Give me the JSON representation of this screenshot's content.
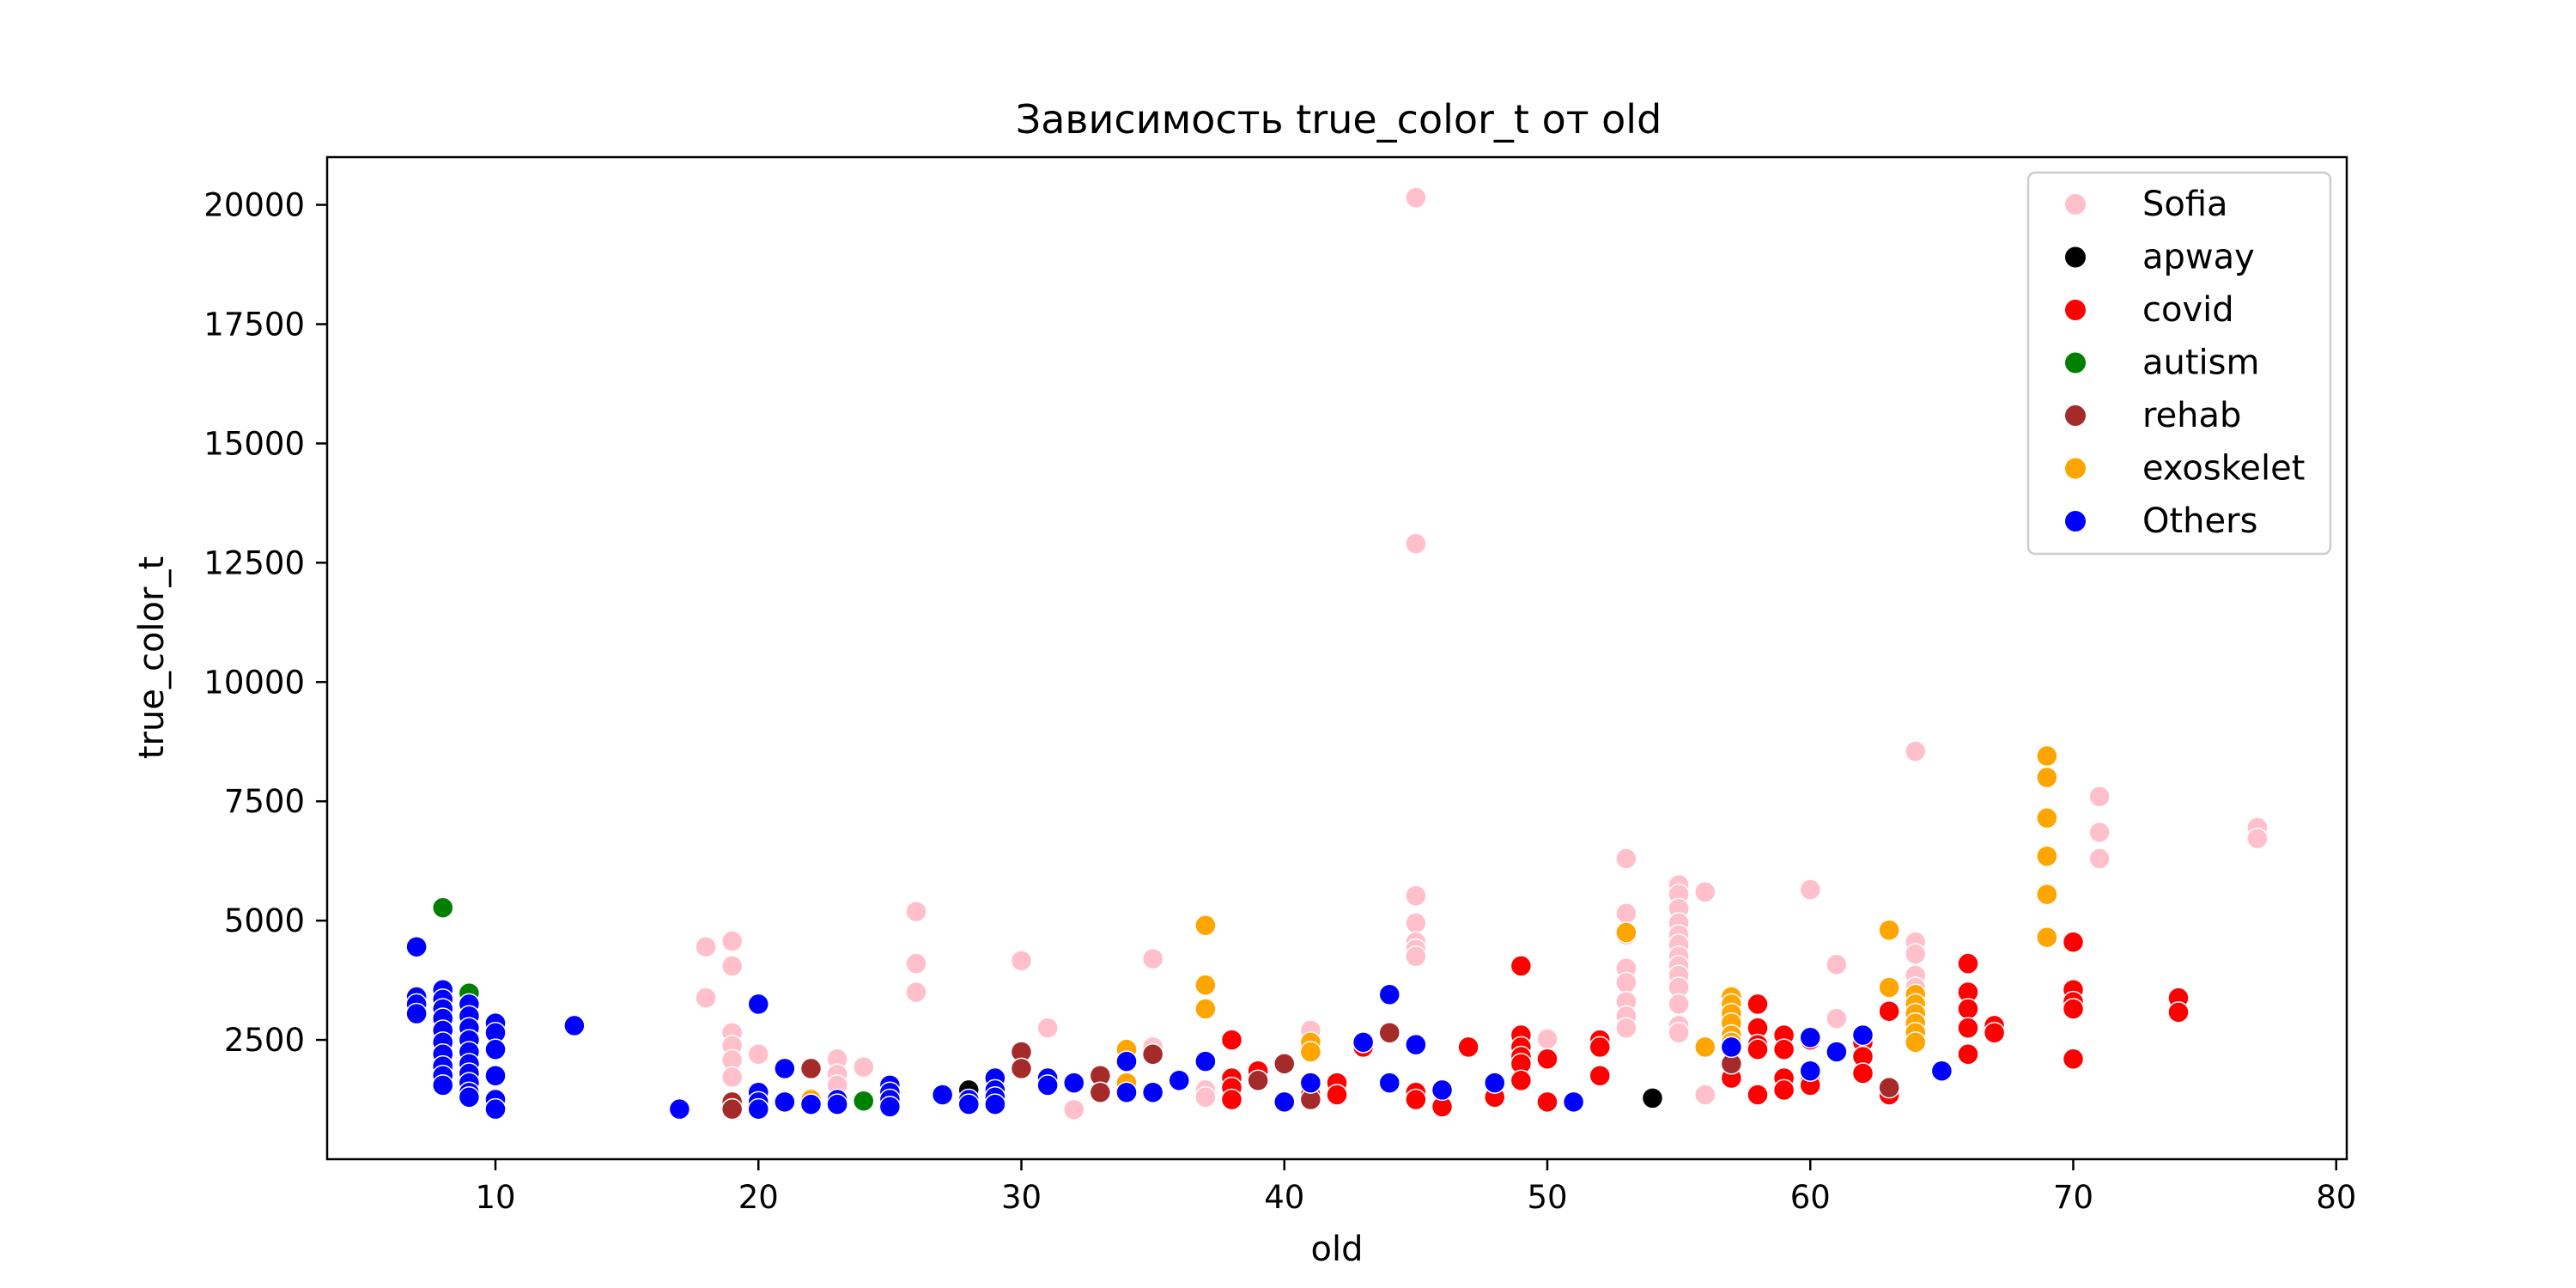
{
  "chart_data": {
    "type": "scatter",
    "title": "Зависимость true_color_t от old",
    "xlabel": "old",
    "ylabel": "true_color_t",
    "xlim": [
      3.6,
      80.4
    ],
    "ylim": [
      0,
      21000
    ],
    "xticks": [
      10,
      20,
      30,
      40,
      50,
      60,
      70,
      80
    ],
    "yticks": [
      2500,
      5000,
      7500,
      10000,
      12500,
      15000,
      17500,
      20000
    ],
    "grid": false,
    "legend_position": "top-right",
    "series": [
      {
        "name": "Sofia",
        "color": "#ffc0cb",
        "points": [
          [
            18,
            4450
          ],
          [
            18,
            3380
          ],
          [
            19,
            4570
          ],
          [
            19,
            4050
          ],
          [
            19,
            2650
          ],
          [
            19,
            2380
          ],
          [
            19,
            2080
          ],
          [
            19,
            1720
          ],
          [
            20,
            2200
          ],
          [
            23,
            2100
          ],
          [
            23,
            1780
          ],
          [
            23,
            1550
          ],
          [
            24,
            1930
          ],
          [
            26,
            5190
          ],
          [
            26,
            4100
          ],
          [
            26,
            3500
          ],
          [
            30,
            4160
          ],
          [
            31,
            2750
          ],
          [
            32,
            1040
          ],
          [
            35,
            4200
          ],
          [
            35,
            2350
          ],
          [
            37,
            1450
          ],
          [
            37,
            1300
          ],
          [
            41,
            2700
          ],
          [
            45,
            20150
          ],
          [
            45,
            12900
          ],
          [
            45,
            5520
          ],
          [
            45,
            4950
          ],
          [
            45,
            4550
          ],
          [
            45,
            4400
          ],
          [
            45,
            4250
          ],
          [
            50,
            2520
          ],
          [
            53,
            6300
          ],
          [
            53,
            5150
          ],
          [
            53,
            4700
          ],
          [
            53,
            4000
          ],
          [
            53,
            3700
          ],
          [
            53,
            3300
          ],
          [
            53,
            3000
          ],
          [
            53,
            2750
          ],
          [
            55,
            5750
          ],
          [
            55,
            5550
          ],
          [
            55,
            5250
          ],
          [
            55,
            4950
          ],
          [
            55,
            4700
          ],
          [
            55,
            4500
          ],
          [
            55,
            4250
          ],
          [
            55,
            4050
          ],
          [
            55,
            3850
          ],
          [
            55,
            3600
          ],
          [
            55,
            3250
          ],
          [
            55,
            2800
          ],
          [
            55,
            2650
          ],
          [
            56,
            5600
          ],
          [
            56,
            1350
          ],
          [
            60,
            5650
          ],
          [
            61,
            4080
          ],
          [
            61,
            2950
          ],
          [
            64,
            8550
          ],
          [
            64,
            4550
          ],
          [
            64,
            4300
          ],
          [
            64,
            3850
          ],
          [
            64,
            3600
          ],
          [
            64,
            3200
          ],
          [
            64,
            2950
          ],
          [
            71,
            7600
          ],
          [
            71,
            6850
          ],
          [
            71,
            6300
          ],
          [
            77,
            6950
          ],
          [
            77,
            6720
          ]
        ]
      },
      {
        "name": "apway",
        "color": "#000000",
        "points": [
          [
            28,
            1450
          ],
          [
            54,
            1280
          ]
        ]
      },
      {
        "name": "covid",
        "color": "#ff0000",
        "points": [
          [
            34,
            1450
          ],
          [
            38,
            2500
          ],
          [
            38,
            1700
          ],
          [
            38,
            1500
          ],
          [
            38,
            1250
          ],
          [
            39,
            1850
          ],
          [
            41,
            2300
          ],
          [
            41,
            1350
          ],
          [
            42,
            1600
          ],
          [
            42,
            1350
          ],
          [
            43,
            2350
          ],
          [
            45,
            1400
          ],
          [
            45,
            1250
          ],
          [
            46,
            1100
          ],
          [
            47,
            2350
          ],
          [
            48,
            1300
          ],
          [
            49,
            4050
          ],
          [
            49,
            2600
          ],
          [
            49,
            2350
          ],
          [
            49,
            2150
          ],
          [
            49,
            2000
          ],
          [
            49,
            1650
          ],
          [
            50,
            2100
          ],
          [
            50,
            1200
          ],
          [
            52,
            2500
          ],
          [
            52,
            2350
          ],
          [
            52,
            1750
          ],
          [
            57,
            2650
          ],
          [
            57,
            2400
          ],
          [
            57,
            1700
          ],
          [
            58,
            3250
          ],
          [
            58,
            2750
          ],
          [
            58,
            2400
          ],
          [
            58,
            2300
          ],
          [
            58,
            1350
          ],
          [
            59,
            2600
          ],
          [
            59,
            2300
          ],
          [
            59,
            1700
          ],
          [
            59,
            1450
          ],
          [
            60,
            2500
          ],
          [
            60,
            1650
          ],
          [
            60,
            1550
          ],
          [
            61,
            2250
          ],
          [
            62,
            2450
          ],
          [
            62,
            2150
          ],
          [
            62,
            1800
          ],
          [
            63,
            3100
          ],
          [
            63,
            1500
          ],
          [
            63,
            1350
          ],
          [
            64,
            2450
          ],
          [
            64,
            2600
          ],
          [
            66,
            4100
          ],
          [
            66,
            3500
          ],
          [
            66,
            3150
          ],
          [
            66,
            2750
          ],
          [
            66,
            2200
          ],
          [
            67,
            2800
          ],
          [
            67,
            2650
          ],
          [
            70,
            4550
          ],
          [
            70,
            3550
          ],
          [
            70,
            3300
          ],
          [
            70,
            3150
          ],
          [
            70,
            2100
          ],
          [
            74,
            3380
          ],
          [
            74,
            3080
          ]
        ]
      },
      {
        "name": "autism",
        "color": "#008000",
        "points": [
          [
            8,
            5270
          ],
          [
            9,
            3480
          ],
          [
            24,
            1220
          ]
        ]
      },
      {
        "name": "rehab",
        "color": "#a52a2a",
        "points": [
          [
            19,
            1200
          ],
          [
            19,
            1050
          ],
          [
            22,
            1900
          ],
          [
            30,
            2250
          ],
          [
            30,
            1900
          ],
          [
            33,
            1750
          ],
          [
            33,
            1400
          ],
          [
            35,
            2200
          ],
          [
            39,
            1650
          ],
          [
            40,
            2000
          ],
          [
            41,
            1250
          ],
          [
            44,
            2650
          ],
          [
            57,
            2000
          ],
          [
            63,
            1500
          ]
        ]
      },
      {
        "name": "exoskelet",
        "color": "#ffa500",
        "points": [
          [
            22,
            1250
          ],
          [
            34,
            2300
          ],
          [
            34,
            1600
          ],
          [
            37,
            4900
          ],
          [
            37,
            3650
          ],
          [
            37,
            3150
          ],
          [
            41,
            2450
          ],
          [
            41,
            2250
          ],
          [
            53,
            4750
          ],
          [
            56,
            2350
          ],
          [
            57,
            3400
          ],
          [
            57,
            3250
          ],
          [
            57,
            3050
          ],
          [
            57,
            2850
          ],
          [
            57,
            2600
          ],
          [
            57,
            2450
          ],
          [
            63,
            4800
          ],
          [
            63,
            3600
          ],
          [
            64,
            3450
          ],
          [
            64,
            3250
          ],
          [
            64,
            3050
          ],
          [
            64,
            2850
          ],
          [
            64,
            2650
          ],
          [
            64,
            2450
          ],
          [
            69,
            8450
          ],
          [
            69,
            8000
          ],
          [
            69,
            7150
          ],
          [
            69,
            6350
          ],
          [
            69,
            5550
          ],
          [
            69,
            4650
          ]
        ]
      },
      {
        "name": "Others",
        "color": "#0000ff",
        "points": [
          [
            7,
            4450
          ],
          [
            7,
            3400
          ],
          [
            7,
            3250
          ],
          [
            7,
            3050
          ],
          [
            8,
            3550
          ],
          [
            8,
            3350
          ],
          [
            8,
            3150
          ],
          [
            8,
            2950
          ],
          [
            8,
            2700
          ],
          [
            8,
            2450
          ],
          [
            8,
            2200
          ],
          [
            8,
            1950
          ],
          [
            8,
            1750
          ],
          [
            8,
            1550
          ],
          [
            9,
            3250
          ],
          [
            9,
            3000
          ],
          [
            9,
            2750
          ],
          [
            9,
            2500
          ],
          [
            9,
            2250
          ],
          [
            9,
            2000
          ],
          [
            9,
            1800
          ],
          [
            9,
            1600
          ],
          [
            9,
            1400
          ],
          [
            9,
            1300
          ],
          [
            10,
            2850
          ],
          [
            10,
            2650
          ],
          [
            10,
            2300
          ],
          [
            10,
            1750
          ],
          [
            10,
            1250
          ],
          [
            10,
            1050
          ],
          [
            13,
            2800
          ],
          [
            17,
            1050
          ],
          [
            20,
            3250
          ],
          [
            20,
            1400
          ],
          [
            20,
            1200
          ],
          [
            20,
            1050
          ],
          [
            21,
            1900
          ],
          [
            21,
            1200
          ],
          [
            22,
            1150
          ],
          [
            23,
            1250
          ],
          [
            23,
            1150
          ],
          [
            25,
            1550
          ],
          [
            25,
            1400
          ],
          [
            25,
            1250
          ],
          [
            25,
            1100
          ],
          [
            27,
            1350
          ],
          [
            28,
            1250
          ],
          [
            28,
            1150
          ],
          [
            29,
            1700
          ],
          [
            29,
            1450
          ],
          [
            29,
            1300
          ],
          [
            29,
            1150
          ],
          [
            31,
            1700
          ],
          [
            31,
            1550
          ],
          [
            32,
            1600
          ],
          [
            34,
            2050
          ],
          [
            34,
            1400
          ],
          [
            35,
            1400
          ],
          [
            36,
            1650
          ],
          [
            37,
            2050
          ],
          [
            40,
            1200
          ],
          [
            41,
            1600
          ],
          [
            43,
            2450
          ],
          [
            44,
            3450
          ],
          [
            44,
            1600
          ],
          [
            45,
            2400
          ],
          [
            46,
            1450
          ],
          [
            48,
            1600
          ],
          [
            51,
            1200
          ],
          [
            57,
            2350
          ],
          [
            60,
            2550
          ],
          [
            60,
            1850
          ],
          [
            61,
            2250
          ],
          [
            62,
            2600
          ],
          [
            65,
            1850
          ]
        ]
      }
    ]
  }
}
